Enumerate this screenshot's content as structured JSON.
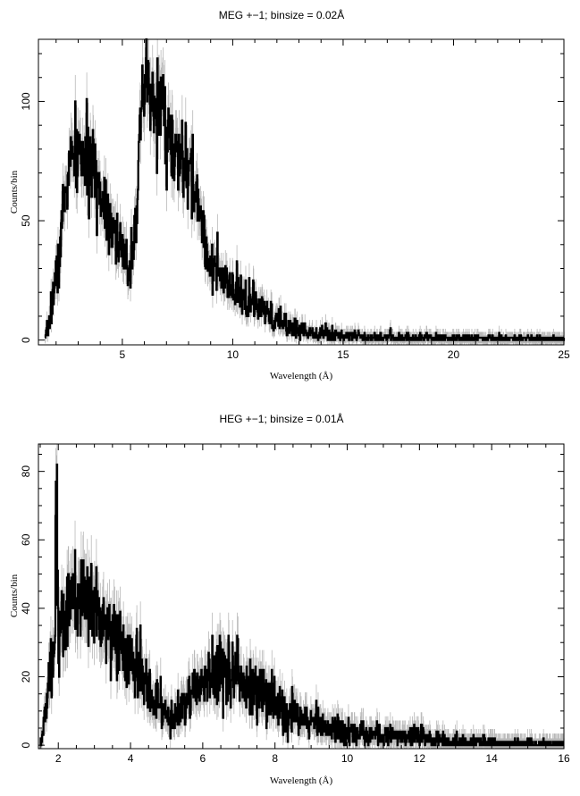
{
  "chart_data": [
    {
      "type": "line",
      "title": "MEG +−1; binsize = 0.02Å",
      "xlabel": "Wavelength (Å)",
      "ylabel": "Counts/bin",
      "xlim": [
        1.2,
        25
      ],
      "ylim": [
        -2,
        126
      ],
      "xticks": [
        5,
        10,
        15,
        20,
        25
      ],
      "xtick_labels": [
        "5",
        "10",
        "15",
        "20",
        "25"
      ],
      "yticks": [
        0,
        50,
        100
      ],
      "ytick_labels": [
        "0",
        "50",
        "100"
      ],
      "series": [
        {
          "x": [
            1.5,
            1.7,
            1.9,
            2.1,
            2.3,
            2.5,
            2.7,
            2.9,
            3.1,
            3.3,
            3.5,
            3.7,
            3.9,
            4.1,
            4.3,
            4.5,
            4.7,
            4.9,
            5.1,
            5.3,
            5.5,
            5.7,
            5.9,
            6.1,
            6.3,
            6.5,
            6.7,
            6.9,
            7.1,
            7.3,
            7.5,
            7.7,
            7.9,
            8.1,
            8.3,
            8.5,
            8.7,
            8.9,
            9.2,
            9.5,
            10.0,
            10.5,
            11.0,
            11.5,
            12.0,
            12.5,
            13.0,
            13.5,
            14.0,
            15.0,
            16.0,
            17.0,
            18.0,
            19.0,
            20.0,
            21.0,
            22.0,
            23.0,
            24.0,
            25.0
          ],
          "values": [
            0,
            8,
            22,
            30,
            52,
            68,
            75,
            77,
            78,
            76,
            72,
            70,
            65,
            60,
            57,
            50,
            45,
            38,
            33,
            30,
            42,
            65,
            95,
            110,
            100,
            95,
            104,
            92,
            85,
            80,
            72,
            78,
            68,
            70,
            62,
            55,
            45,
            35,
            30,
            25,
            20,
            18,
            15,
            11,
            8,
            6,
            4.5,
            3.5,
            3,
            2,
            1.5,
            1.2,
            1,
            1,
            0.8,
            0.7,
            0.6,
            0.6,
            0.5,
            0.5
          ]
        }
      ]
    },
    {
      "type": "line",
      "title": "HEG +−1; binsize = 0.01Å",
      "xlabel": "Wavelength (Å)",
      "ylabel": "Counts/bin",
      "xlim": [
        1.45,
        16
      ],
      "ylim": [
        -1,
        88
      ],
      "xticks": [
        2,
        4,
        6,
        8,
        10,
        12,
        14,
        16
      ],
      "xtick_labels": [
        "2",
        "4",
        "6",
        "8",
        "10",
        "12",
        "14",
        "16"
      ],
      "yticks": [
        0,
        20,
        40,
        60,
        80
      ],
      "ytick_labels": [
        "0",
        "20",
        "40",
        "60",
        "80"
      ],
      "series": [
        {
          "x": [
            1.5,
            1.6,
            1.7,
            1.8,
            1.9,
            1.95,
            2.0,
            2.1,
            2.3,
            2.5,
            2.7,
            2.9,
            3.1,
            3.3,
            3.5,
            3.7,
            3.9,
            4.1,
            4.3,
            4.5,
            4.7,
            4.9,
            5.1,
            5.3,
            5.5,
            5.7,
            5.9,
            6.1,
            6.3,
            6.5,
            6.7,
            6.9,
            7.1,
            7.3,
            7.5,
            7.7,
            7.9,
            8.1,
            8.3,
            8.5,
            8.7,
            8.9,
            9.2,
            9.5,
            10.0,
            10.5,
            11.0,
            11.5,
            12.0,
            12.5,
            13.0,
            13.5,
            14.0,
            15.0,
            16.0
          ],
          "values": [
            1,
            6,
            15,
            22,
            28,
            86,
            32,
            35,
            40,
            42,
            43,
            42,
            40,
            36,
            33,
            30,
            26,
            23,
            20,
            16,
            13,
            10,
            8,
            9,
            12,
            15,
            17,
            19,
            21,
            22,
            22,
            21,
            20,
            18,
            16,
            15,
            13,
            12,
            10,
            9,
            8,
            7,
            6,
            5,
            4,
            3.5,
            3,
            2.5,
            3,
            1.5,
            1,
            0.8,
            0.6,
            0.4,
            0.3
          ]
        }
      ]
    }
  ]
}
